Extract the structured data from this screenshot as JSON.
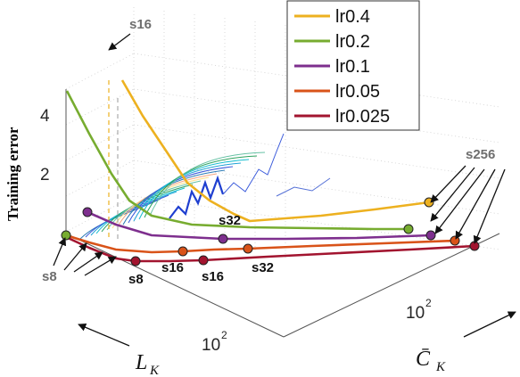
{
  "chart_data": {
    "type": "line",
    "ylabel": "Training error",
    "xlabel_left": "L",
    "xlabel_left_sub": "K",
    "xlabel_right": "C̄",
    "xlabel_right_sub": "K",
    "yticks": [
      "2",
      "4"
    ],
    "xticks_left": [
      {
        "base": "10",
        "exp": "2"
      }
    ],
    "xticks_right": [
      {
        "base": "10",
        "exp": "2"
      }
    ],
    "legend": {
      "placement": "top-right",
      "entries": [
        "lr0.4",
        "lr0.2",
        "lr0.1",
        "lr0.05",
        "lr0.025"
      ]
    },
    "series": [
      {
        "name": "lr0.4",
        "color": "#EDB120"
      },
      {
        "name": "lr0.2",
        "color": "#77AC30"
      },
      {
        "name": "lr0.1",
        "color": "#7E2F8E"
      },
      {
        "name": "lr0.05",
        "color": "#D95319"
      },
      {
        "name": "lr0.025",
        "color": "#A2142F"
      }
    ],
    "annotations": {
      "s16_top": "s16",
      "s256": "s256",
      "s32_upper": "s32",
      "s8_left": "s8",
      "s8_bottom": "s8",
      "s16_bottom_a": "s16",
      "s16_bottom_b": "s16",
      "s32_bottom": "s32"
    }
  }
}
